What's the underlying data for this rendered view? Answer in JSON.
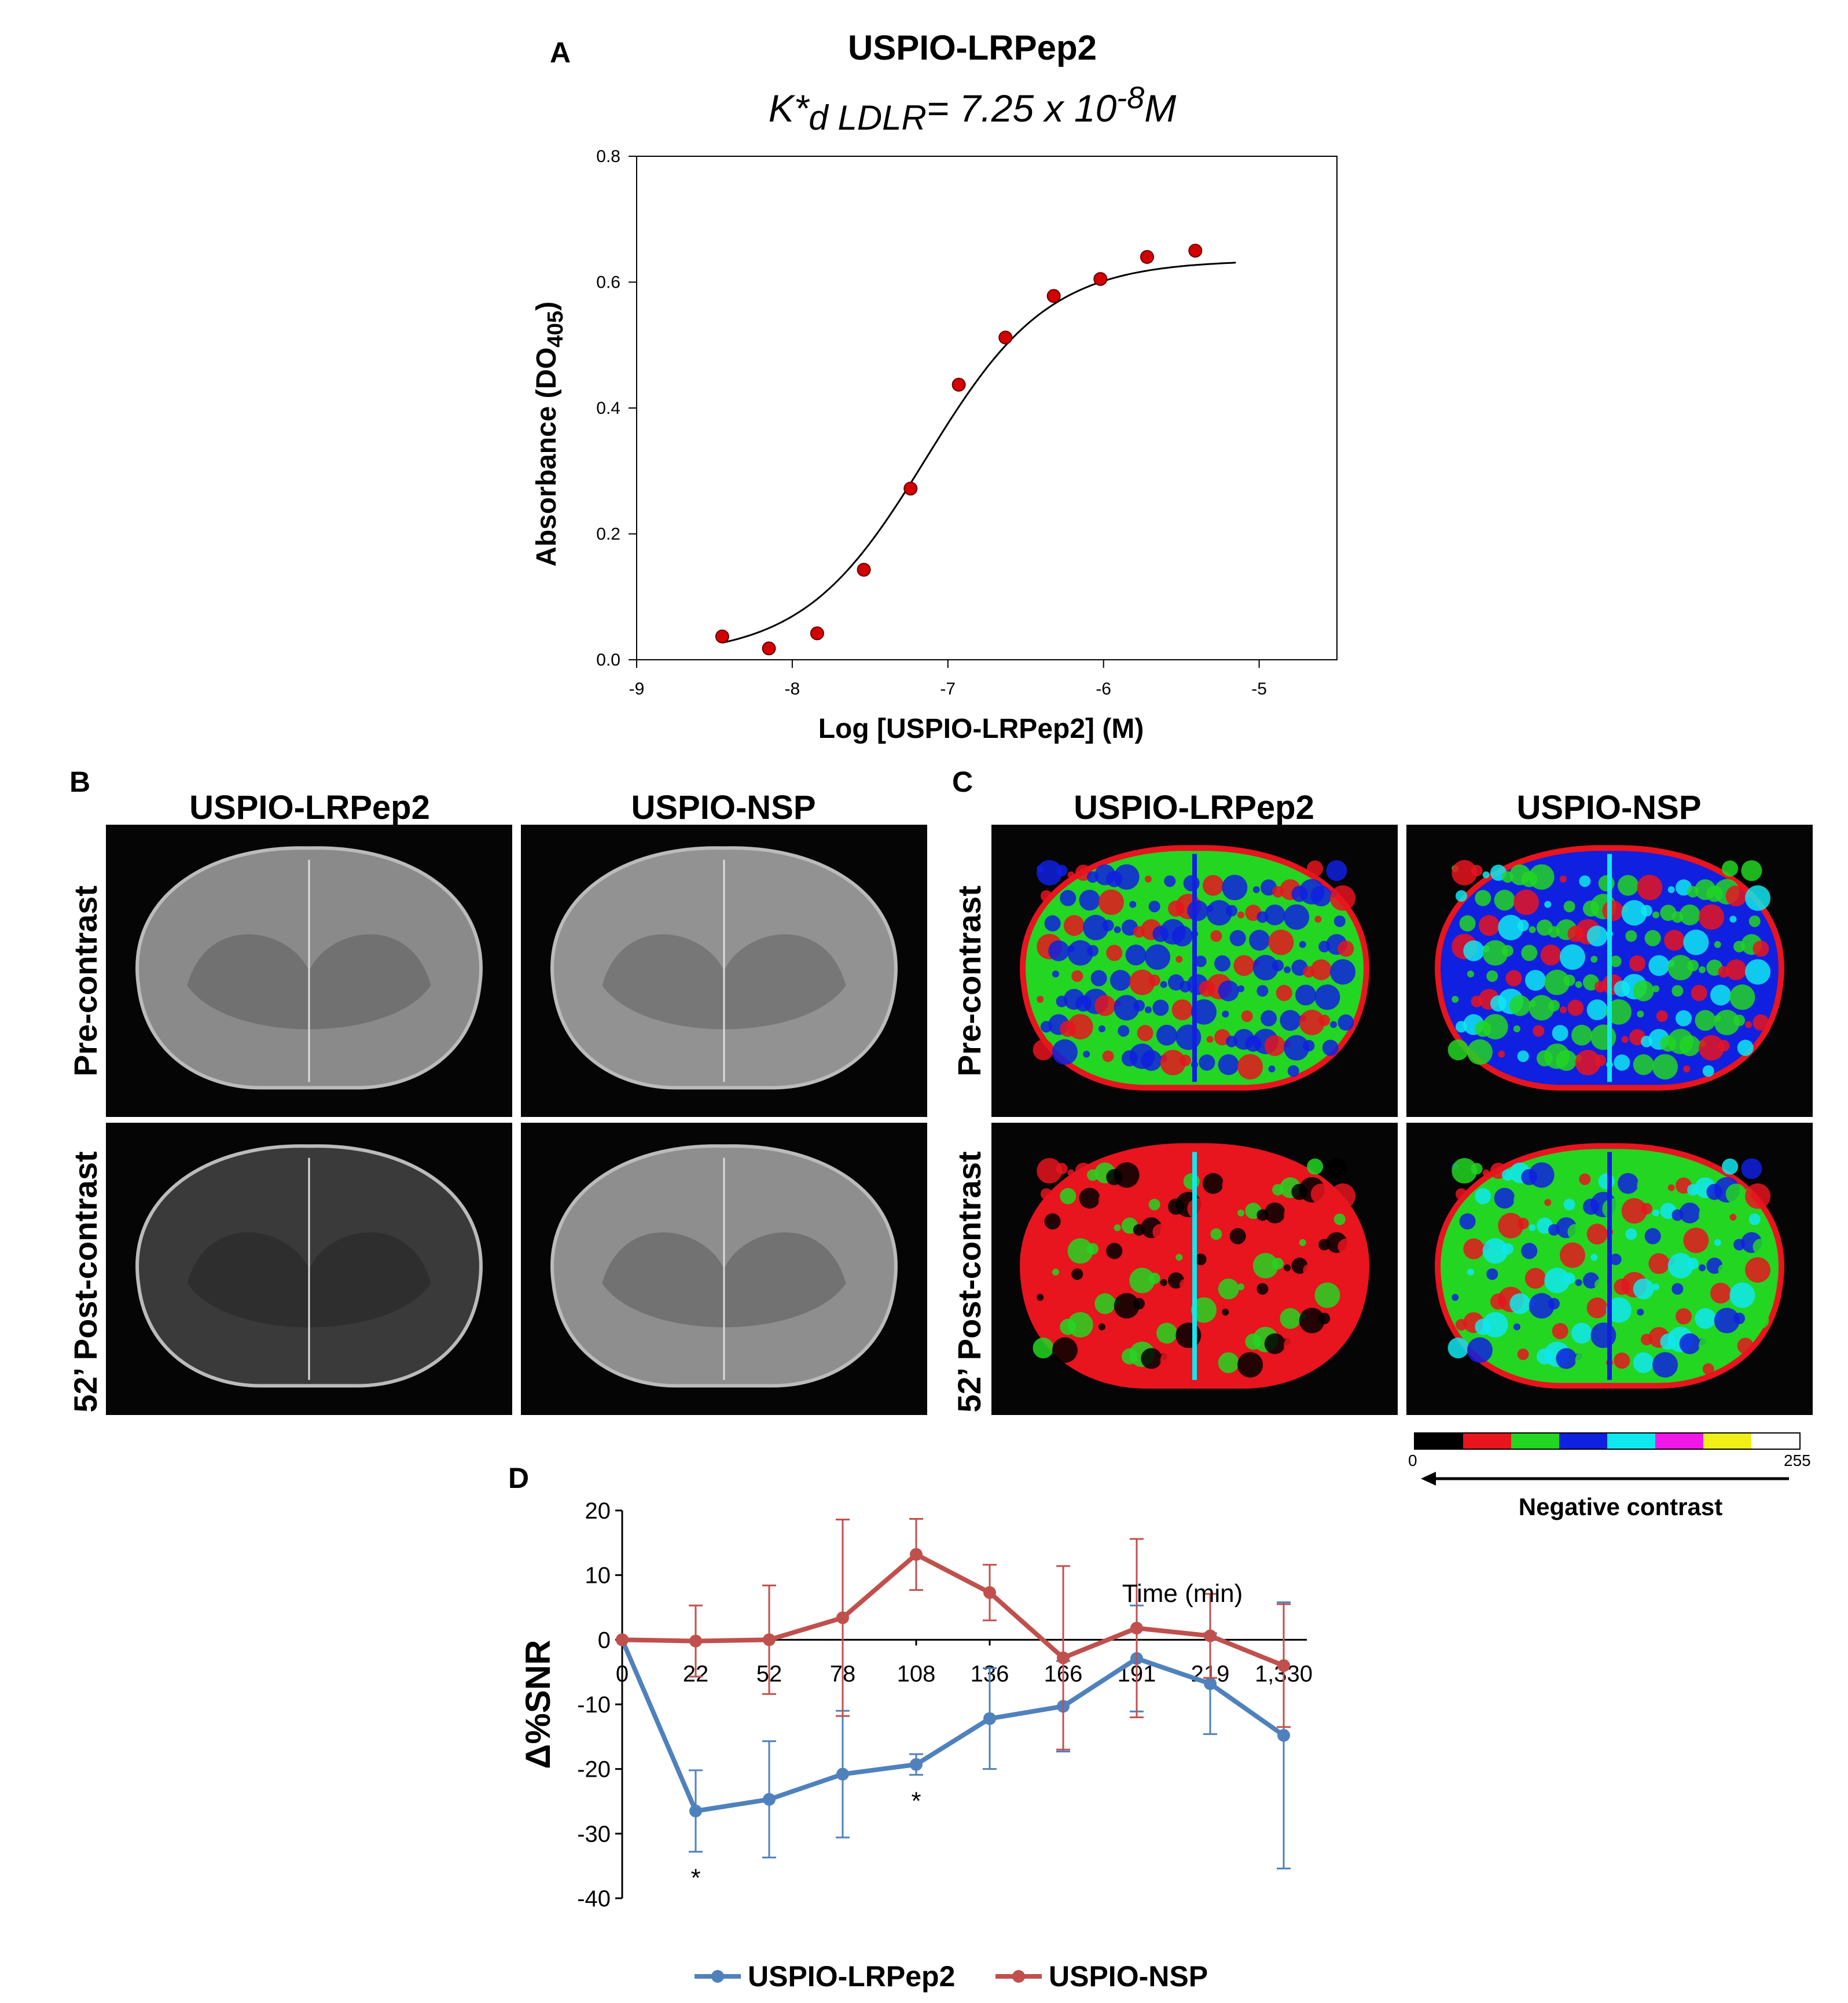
{
  "panel_a": {
    "letter": "A",
    "title": "USPIO-LRPep2",
    "kd_symbol": "K*",
    "kd_subscript": "d LDLR",
    "kd_value": "= 7.25 x 10",
    "kd_exponent": "-8",
    "kd_unit": "M"
  },
  "panel_b": {
    "letter": "B",
    "col_left": "USPIO-LRPep2",
    "col_right": "USPIO-NSP",
    "row_top": "Pre-contrast",
    "row_bottom": "52’ Post-contrast"
  },
  "panel_c": {
    "letter": "C",
    "col_left": "USPIO-LRPep2",
    "col_right": "USPIO-NSP",
    "row_top": "Pre-contrast",
    "row_bottom": "52’ Post-contrast",
    "colorbar": {
      "colors": [
        "#000000",
        "#e8141e",
        "#22d622",
        "#1020e0",
        "#10e8f0",
        "#f018e8",
        "#f0f018",
        "#ffffff"
      ],
      "min_label": "0",
      "max_label": "255",
      "caption": "Negative contrast"
    }
  },
  "panel_d": {
    "letter": "D"
  },
  "colors": {
    "fit_line": "#000000",
    "points_a": "#d40000",
    "lrpep2": "#4f81bd",
    "nsp": "#c0504d"
  },
  "chart_data": [
    {
      "id": "binding_curve",
      "type": "scatter",
      "title": "USPIO-LRPep2",
      "subtitle": "K*d LDLR= 7.25 x 10-8M",
      "xlabel": "Log [USPIO-LRPep2] (M)",
      "ylabel": "Absorbance (DO",
      "ylabel_sub": "405",
      "ylabel_close": ")",
      "xlim": [
        -9,
        -4.5
      ],
      "ylim": [
        0,
        0.8
      ],
      "xticks": [
        -9,
        -8,
        -7,
        -6,
        -5
      ],
      "yticks": [
        0.0,
        0.2,
        0.4,
        0.6,
        0.8
      ],
      "ytick_labels": [
        "0.0",
        "0.2",
        "0.4",
        "0.6",
        "0.8"
      ],
      "x": [
        -8.45,
        -8.15,
        -7.84,
        -7.54,
        -7.24,
        -6.93,
        -6.63,
        -6.32,
        -6.02,
        -5.72,
        -5.41
      ],
      "y": [
        0.037,
        0.018,
        0.042,
        0.143,
        0.272,
        0.437,
        0.512,
        0.578,
        0.605,
        0.64,
        0.65
      ],
      "fit": {
        "model": "four-parameter logistic",
        "bottom": 0.005,
        "top": 0.635,
        "log_ec50": -7.14,
        "hill": 1.1,
        "x_range": [
          -8.45,
          -5.15
        ]
      }
    },
    {
      "id": "snr_timecourse",
      "type": "line",
      "xlabel": "Time (min)",
      "ylabel": "Δ%SNR",
      "categories": [
        "0",
        "22",
        "52",
        "78",
        "108",
        "136",
        "166",
        "191",
        "219",
        "1,330"
      ],
      "ylim": [
        -40,
        20
      ],
      "yticks": [
        20,
        10,
        0,
        -10,
        -20,
        -30,
        -40
      ],
      "series": [
        {
          "name": "USPIO-LRPep2",
          "values": [
            0,
            -26.5,
            -24.7,
            -20.8,
            -19.3,
            -12.2,
            -10.3,
            -2.9,
            -6.8,
            -14.8
          ],
          "errors": [
            0,
            6.3,
            9.0,
            9.8,
            1.6,
            7.8,
            7.0,
            8.2,
            7.8,
            20.6
          ]
        },
        {
          "name": "USPIO-NSP",
          "values": [
            0,
            -0.2,
            0,
            3.4,
            13.2,
            7.3,
            -2.8,
            1.8,
            0.6,
            -4.0
          ],
          "errors": [
            0,
            5.5,
            8.4,
            15.2,
            5.5,
            4.3,
            14.2,
            13.8,
            6.5,
            9.5
          ]
        }
      ],
      "annotations": [
        {
          "category": "22",
          "text": "*"
        },
        {
          "category": "108",
          "text": "*"
        }
      ]
    }
  ]
}
